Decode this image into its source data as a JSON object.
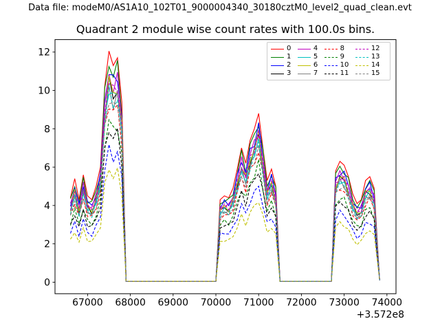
{
  "header": {
    "datafile_label": "Data file: modeM0/AS1A10_102T01_9000004340_30180cztM0_level2_quad_clean.evt",
    "title": "Quadrant 2 module wise count rates with 100.0s bins."
  },
  "chart_data": {
    "type": "line",
    "title": "Quadrant 2 module wise count rates with 100.0s bins.",
    "xlabel": "",
    "ylabel": "",
    "grid": false,
    "x_axis": {
      "ticks": [
        67000,
        68000,
        69000,
        70000,
        71000,
        72000,
        73000,
        74000
      ],
      "offset_text": "+3.572e8",
      "xlim": [
        66238,
        74212
      ]
    },
    "y_axis": {
      "ticks": [
        0,
        2,
        4,
        6,
        8,
        10,
        12
      ],
      "ylim": [
        -0.6,
        12.65
      ]
    },
    "legend": {
      "position": "upper right",
      "ncol": 4,
      "order": "column-major"
    },
    "x": [
      66600,
      66700,
      66800,
      66900,
      67000,
      67100,
      67200,
      67300,
      67400,
      67500,
      67600,
      67700,
      67800,
      67900,
      68500,
      69500,
      70000,
      70100,
      70200,
      70300,
      70400,
      70500,
      70600,
      70700,
      70800,
      70900,
      71000,
      71100,
      71200,
      71300,
      71400,
      71500,
      72000,
      72600,
      72700,
      72800,
      72900,
      73000,
      73100,
      73200,
      73300,
      73400,
      73500,
      73600,
      73700,
      73830
    ],
    "module0_values": [
      4.4,
      5.4,
      4.3,
      5.6,
      4.5,
      4.3,
      5.0,
      6.0,
      10.2,
      12.05,
      11.3,
      11.7,
      9.4,
      0.05,
      0.05,
      0.05,
      0.05,
      4.3,
      4.5,
      4.4,
      4.9,
      5.9,
      7.0,
      6.2,
      7.4,
      8.0,
      8.8,
      7.0,
      5.3,
      5.9,
      5.0,
      0.05,
      0.05,
      0.05,
      0.05,
      5.8,
      6.3,
      6.1,
      5.5,
      4.6,
      4.1,
      4.3,
      5.3,
      5.5,
      4.9,
      0.1
    ],
    "series": [
      {
        "name": "0",
        "color": "#ff0000",
        "linestyle": "solid",
        "scale_vs_module0": 1.0
      },
      {
        "name": "1",
        "color": "#008000",
        "linestyle": "solid",
        "scale_vs_module0": 0.955
      },
      {
        "name": "2",
        "color": "#0000ff",
        "linestyle": "solid",
        "scale_vs_module0": 0.92
      },
      {
        "name": "3",
        "color": "#000000",
        "linestyle": "solid",
        "scale_vs_module0": 0.86
      },
      {
        "name": "4",
        "color": "#bf00bf",
        "linestyle": "solid",
        "scale_vs_module0": 0.9
      },
      {
        "name": "5",
        "color": "#00bfbf",
        "linestyle": "solid",
        "scale_vs_module0": 0.845
      },
      {
        "name": "6",
        "color": "#bfbf00",
        "linestyle": "solid",
        "scale_vs_module0": 0.87
      },
      {
        "name": "7",
        "color": "#808080",
        "linestyle": "solid",
        "scale_vs_module0": 0.83
      },
      {
        "name": "8",
        "color": "#ff0000",
        "linestyle": "dashed",
        "scale_vs_module0": 0.78
      },
      {
        "name": "9",
        "color": "#008000",
        "linestyle": "dashed",
        "scale_vs_module0": 0.7
      },
      {
        "name": "10",
        "color": "#0000ff",
        "linestyle": "dashed",
        "scale_vs_module0": 0.575
      },
      {
        "name": "11",
        "color": "#000000",
        "linestyle": "dashed",
        "scale_vs_module0": 0.665
      },
      {
        "name": "12",
        "color": "#bf00bf",
        "linestyle": "dashed",
        "scale_vs_module0": 0.875
      },
      {
        "name": "13",
        "color": "#00bfbf",
        "linestyle": "dashed",
        "scale_vs_module0": 0.82
      },
      {
        "name": "14",
        "color": "#bfbf00",
        "linestyle": "dashed",
        "scale_vs_module0": 0.49
      },
      {
        "name": "15",
        "color": "#808080",
        "linestyle": "dashed",
        "scale_vs_module0": 0.8
      }
    ]
  },
  "style": {
    "axes_edge_color": "#000000",
    "legend_edge_color": "#cccccc",
    "background": "#ffffff"
  }
}
